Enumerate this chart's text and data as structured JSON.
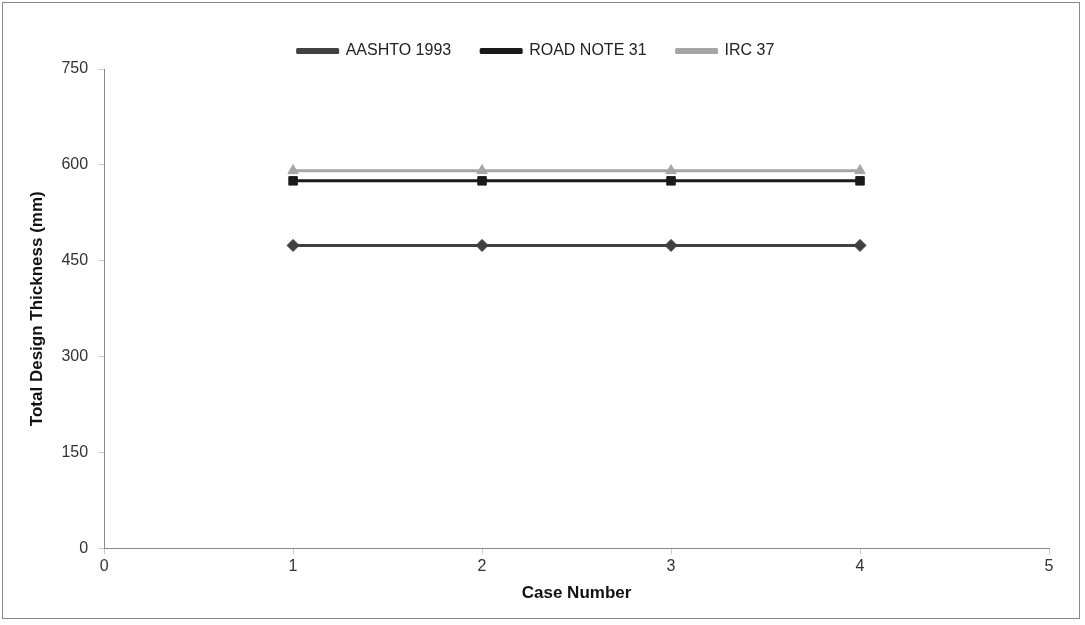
{
  "chart_data": {
    "type": "line",
    "xlabel": "Case Number",
    "ylabel": "Total Design Thickness (mm)",
    "x": [
      1,
      2,
      3,
      4
    ],
    "xlim": [
      0,
      5
    ],
    "xticks": [
      0,
      1,
      2,
      3,
      4,
      5
    ],
    "ylim": [
      0,
      750
    ],
    "yticks": [
      0,
      150,
      300,
      450,
      600,
      750
    ],
    "grid": false,
    "legend": "top",
    "line_style": "solid",
    "series": [
      {
        "name": "AASHTO 1993",
        "color": "#404040",
        "marker": "diamond",
        "values": [
          474,
          474,
          474,
          474
        ]
      },
      {
        "name": "ROAD NOTE 31",
        "color": "#1a1a1a",
        "marker": "square",
        "values": [
          575,
          575,
          575,
          575
        ]
      },
      {
        "name": "IRC 37",
        "color": "#a6a6a6",
        "marker": "triangle",
        "values": [
          591,
          591,
          591,
          591
        ]
      }
    ]
  }
}
